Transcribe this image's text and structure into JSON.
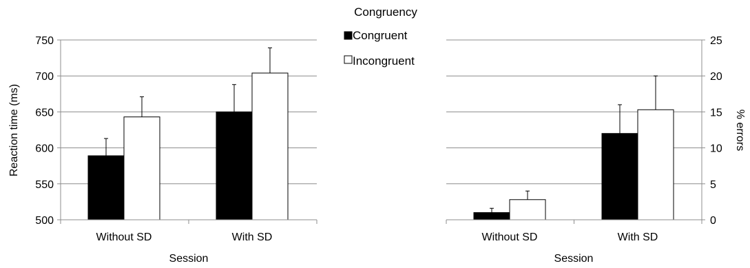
{
  "legend": {
    "title": "Congruency",
    "items": [
      {
        "label": "Congruent",
        "color": "#000000"
      },
      {
        "label": "Incongruent",
        "color": "#ffffff"
      }
    ]
  },
  "chart_data": [
    {
      "type": "bar",
      "categories": [
        "Without SD",
        "With SD"
      ],
      "series": [
        {
          "name": "Congruent",
          "values": [
            589,
            650
          ],
          "errors": [
            24,
            38
          ],
          "color": "#000000"
        },
        {
          "name": "Incongruent",
          "values": [
            643,
            704
          ],
          "errors": [
            28,
            35
          ],
          "color": "#ffffff"
        }
      ],
      "xlabel": "Session",
      "ylabel": "Reaction time (ms)",
      "ylim": [
        500,
        750
      ],
      "yticks": [
        "500",
        "550",
        "600",
        "650",
        "700",
        "750"
      ],
      "y_axis_side": "left",
      "grid": true,
      "legend_position": "top-center"
    },
    {
      "type": "bar",
      "categories": [
        "Without SD",
        "With SD"
      ],
      "series": [
        {
          "name": "Congruent",
          "values": [
            1,
            12
          ],
          "errors": [
            0.6,
            4
          ],
          "color": "#000000"
        },
        {
          "name": "Incongruent",
          "values": [
            2.8,
            15.3
          ],
          "errors": [
            1.2,
            4.7
          ],
          "color": "#ffffff"
        }
      ],
      "xlabel": "Session",
      "ylabel": "% errors",
      "ylim": [
        0,
        25
      ],
      "yticks": [
        "0",
        "5",
        "10",
        "15",
        "20",
        "25"
      ],
      "y_axis_side": "right",
      "grid": true,
      "legend_position": "top-center"
    }
  ]
}
